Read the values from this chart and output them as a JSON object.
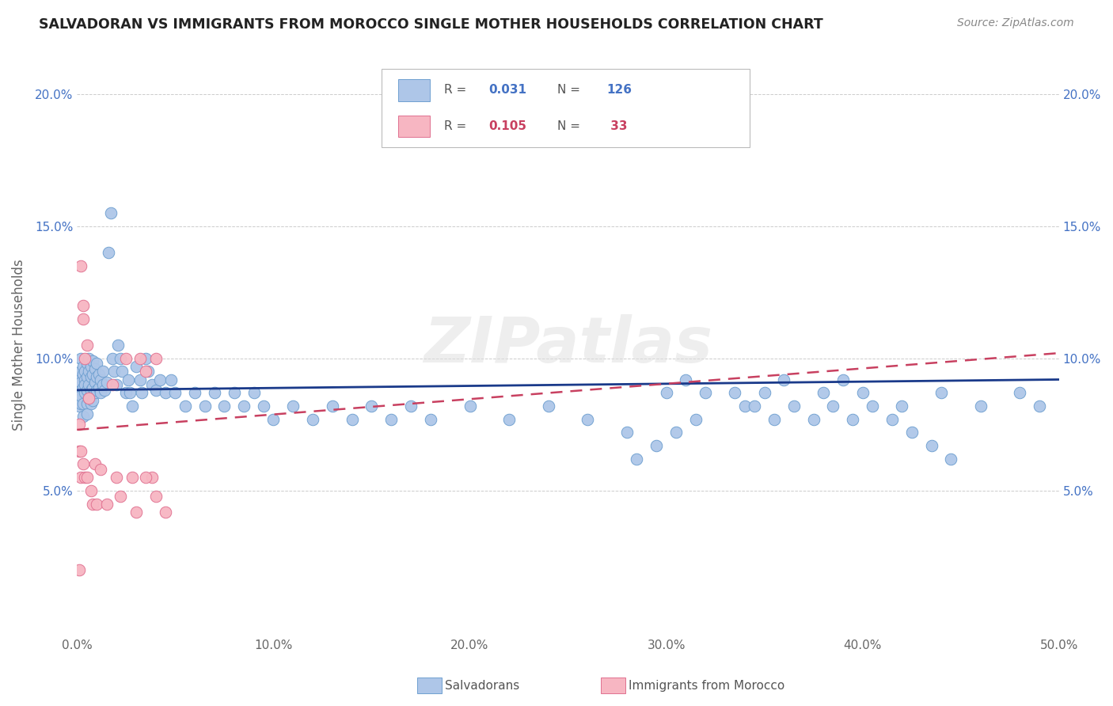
{
  "title": "SALVADORAN VS IMMIGRANTS FROM MOROCCO SINGLE MOTHER HOUSEHOLDS CORRELATION CHART",
  "source": "Source: ZipAtlas.com",
  "ylabel": "Single Mother Households",
  "xlim": [
    0,
    0.5
  ],
  "ylim": [
    -0.005,
    0.215
  ],
  "xticks": [
    0.0,
    0.1,
    0.2,
    0.3,
    0.4,
    0.5
  ],
  "xtick_labels": [
    "0.0%",
    "10.0%",
    "20.0%",
    "30.0%",
    "40.0%",
    "50.0%"
  ],
  "yticks": [
    0.05,
    0.1,
    0.15,
    0.2
  ],
  "ytick_labels": [
    "5.0%",
    "10.0%",
    "15.0%",
    "20.0%"
  ],
  "blue_color": "#aec6e8",
  "blue_edge": "#6fa0d0",
  "pink_color": "#f7b6c2",
  "pink_edge": "#e07090",
  "trend_blue_color": "#1a3a8a",
  "trend_pink_color": "#c84060",
  "watermark": "ZIPatlas",
  "salvadoran_x": [
    0.001,
    0.001,
    0.001,
    0.001,
    0.002,
    0.002,
    0.002,
    0.002,
    0.002,
    0.002,
    0.003,
    0.003,
    0.003,
    0.003,
    0.003,
    0.004,
    0.004,
    0.004,
    0.004,
    0.005,
    0.005,
    0.005,
    0.005,
    0.005,
    0.006,
    0.006,
    0.006,
    0.006,
    0.007,
    0.007,
    0.007,
    0.007,
    0.008,
    0.008,
    0.008,
    0.008,
    0.009,
    0.009,
    0.009,
    0.01,
    0.01,
    0.01,
    0.011,
    0.011,
    0.012,
    0.012,
    0.013,
    0.013,
    0.014,
    0.015,
    0.016,
    0.017,
    0.018,
    0.019,
    0.02,
    0.021,
    0.022,
    0.023,
    0.025,
    0.026,
    0.027,
    0.028,
    0.03,
    0.032,
    0.033,
    0.035,
    0.036,
    0.038,
    0.04,
    0.042,
    0.045,
    0.048,
    0.05,
    0.055,
    0.06,
    0.065,
    0.07,
    0.075,
    0.08,
    0.085,
    0.09,
    0.095,
    0.1,
    0.11,
    0.12,
    0.13,
    0.14,
    0.15,
    0.16,
    0.17,
    0.18,
    0.2,
    0.22,
    0.24,
    0.26,
    0.28,
    0.3,
    0.31,
    0.32,
    0.34,
    0.35,
    0.36,
    0.38,
    0.39,
    0.4,
    0.42,
    0.44,
    0.46,
    0.48,
    0.49,
    0.295,
    0.305,
    0.315,
    0.285,
    0.335,
    0.345,
    0.355,
    0.365,
    0.375,
    0.385,
    0.395,
    0.405,
    0.415,
    0.425,
    0.435,
    0.445
  ],
  "salvadoran_y": [
    0.09,
    0.085,
    0.082,
    0.093,
    0.088,
    0.083,
    0.095,
    0.091,
    0.086,
    0.1,
    0.094,
    0.089,
    0.083,
    0.078,
    0.097,
    0.092,
    0.087,
    0.095,
    0.09,
    0.098,
    0.093,
    0.088,
    0.083,
    0.079,
    0.1,
    0.095,
    0.09,
    0.085,
    0.097,
    0.093,
    0.088,
    0.083,
    0.099,
    0.094,
    0.089,
    0.084,
    0.096,
    0.091,
    0.087,
    0.098,
    0.093,
    0.088,
    0.094,
    0.089,
    0.092,
    0.087,
    0.095,
    0.09,
    0.088,
    0.091,
    0.14,
    0.155,
    0.1,
    0.095,
    0.09,
    0.105,
    0.1,
    0.095,
    0.087,
    0.092,
    0.087,
    0.082,
    0.097,
    0.092,
    0.087,
    0.1,
    0.095,
    0.09,
    0.088,
    0.092,
    0.087,
    0.092,
    0.087,
    0.082,
    0.087,
    0.082,
    0.087,
    0.082,
    0.087,
    0.082,
    0.087,
    0.082,
    0.077,
    0.082,
    0.077,
    0.082,
    0.077,
    0.082,
    0.077,
    0.082,
    0.077,
    0.082,
    0.077,
    0.082,
    0.077,
    0.072,
    0.087,
    0.092,
    0.087,
    0.082,
    0.087,
    0.092,
    0.087,
    0.092,
    0.087,
    0.082,
    0.087,
    0.082,
    0.087,
    0.082,
    0.067,
    0.072,
    0.077,
    0.062,
    0.087,
    0.082,
    0.077,
    0.082,
    0.077,
    0.082,
    0.077,
    0.082,
    0.077,
    0.072,
    0.067,
    0.062
  ],
  "morocco_x": [
    0.001,
    0.001,
    0.001,
    0.002,
    0.002,
    0.002,
    0.003,
    0.003,
    0.003,
    0.004,
    0.004,
    0.005,
    0.005,
    0.006,
    0.007,
    0.008,
    0.009,
    0.01,
    0.012,
    0.015,
    0.018,
    0.02,
    0.022,
    0.025,
    0.028,
    0.03,
    0.032,
    0.035,
    0.038,
    0.04,
    0.035,
    0.04,
    0.045
  ],
  "morocco_y": [
    0.075,
    0.065,
    0.02,
    0.135,
    0.065,
    0.055,
    0.12,
    0.115,
    0.06,
    0.1,
    0.055,
    0.105,
    0.055,
    0.085,
    0.05,
    0.045,
    0.06,
    0.045,
    0.058,
    0.045,
    0.09,
    0.055,
    0.048,
    0.1,
    0.055,
    0.042,
    0.1,
    0.095,
    0.055,
    0.1,
    0.055,
    0.048,
    0.042
  ],
  "blue_trend_x0": 0.0,
  "blue_trend_y0": 0.088,
  "blue_trend_x1": 0.5,
  "blue_trend_y1": 0.092,
  "pink_trend_x0": 0.0,
  "pink_trend_y0": 0.073,
  "pink_trend_x1": 0.5,
  "pink_trend_y1": 0.102
}
